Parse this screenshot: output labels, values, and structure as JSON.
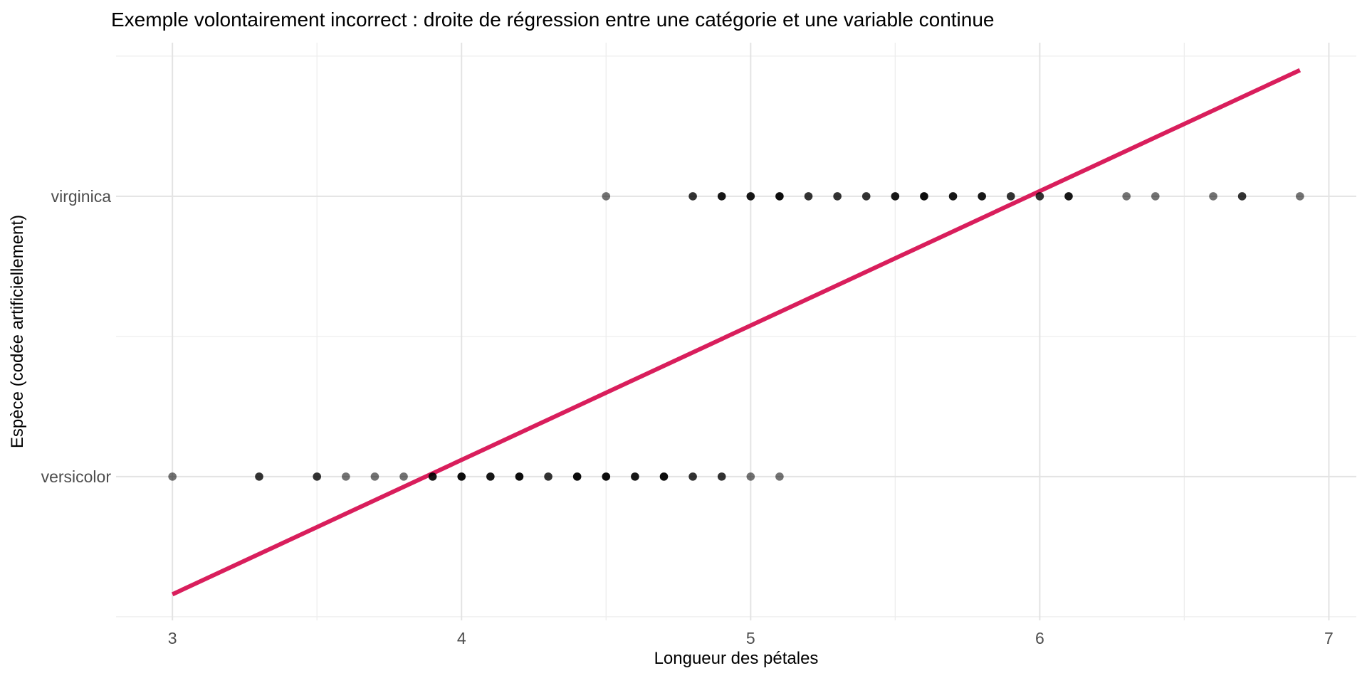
{
  "title": "Exemple volontairement incorrect : droite de régression entre une catégorie et une variable continue",
  "chart_data": {
    "type": "scatter",
    "title": "Exemple volontairement incorrect : droite de régression entre une catégorie et une variable continue",
    "xlabel": "Longueur des pétales",
    "ylabel": "Espèce (codée artificiellement)",
    "xlim": [
      2.805,
      7.095
    ],
    "ylim": [
      0.487,
      2.548
    ],
    "grid": true,
    "legend": false,
    "x_ticks": [
      {
        "value": 3,
        "label": "3"
      },
      {
        "value": 4,
        "label": "4"
      },
      {
        "value": 5,
        "label": "5"
      },
      {
        "value": 6,
        "label": "6"
      },
      {
        "value": 7,
        "label": "7"
      }
    ],
    "x_minor_ticks": [
      3.5,
      4.5,
      5.5,
      6.5
    ],
    "y_minor_gridlines": [
      0.5,
      1.5,
      2.5
    ],
    "series": [
      {
        "name": "versicolor",
        "code": 1,
        "points": [
          [
            3.0,
            1
          ],
          [
            3.3,
            2
          ],
          [
            3.5,
            2
          ],
          [
            3.6,
            1
          ],
          [
            3.7,
            1
          ],
          [
            3.8,
            1
          ],
          [
            3.9,
            3
          ],
          [
            4.0,
            5
          ],
          [
            4.1,
            3
          ],
          [
            4.2,
            4
          ],
          [
            4.3,
            2
          ],
          [
            4.4,
            4
          ],
          [
            4.5,
            7
          ],
          [
            4.6,
            3
          ],
          [
            4.7,
            5
          ],
          [
            4.8,
            2
          ],
          [
            4.9,
            2
          ],
          [
            5.0,
            1
          ],
          [
            5.1,
            1
          ]
        ]
      },
      {
        "name": "virginica",
        "code": 2,
        "points": [
          [
            4.5,
            1
          ],
          [
            4.8,
            2
          ],
          [
            4.9,
            3
          ],
          [
            5.0,
            3
          ],
          [
            5.1,
            7
          ],
          [
            5.2,
            2
          ],
          [
            5.3,
            2
          ],
          [
            5.4,
            2
          ],
          [
            5.5,
            3
          ],
          [
            5.6,
            6
          ],
          [
            5.7,
            3
          ],
          [
            5.8,
            3
          ],
          [
            5.9,
            2
          ],
          [
            6.0,
            2
          ],
          [
            6.1,
            3
          ],
          [
            6.3,
            1
          ],
          [
            6.4,
            1
          ],
          [
            6.6,
            1
          ],
          [
            6.7,
            2
          ],
          [
            6.9,
            1
          ]
        ]
      }
    ],
    "regression_line": {
      "x1": 3.0,
      "y1": 0.58,
      "x2": 6.9,
      "y2": 2.45,
      "stroke_width": 6
    },
    "point_radius": 5.8,
    "colors": {
      "background": "#FFFFFF",
      "grid_major": "#E3E3E3",
      "grid_minor": "#EDEDED",
      "point": "#000000",
      "tick_text": "#4D4D4D",
      "title_text": "#000000",
      "regression": "#D91E5C"
    }
  }
}
